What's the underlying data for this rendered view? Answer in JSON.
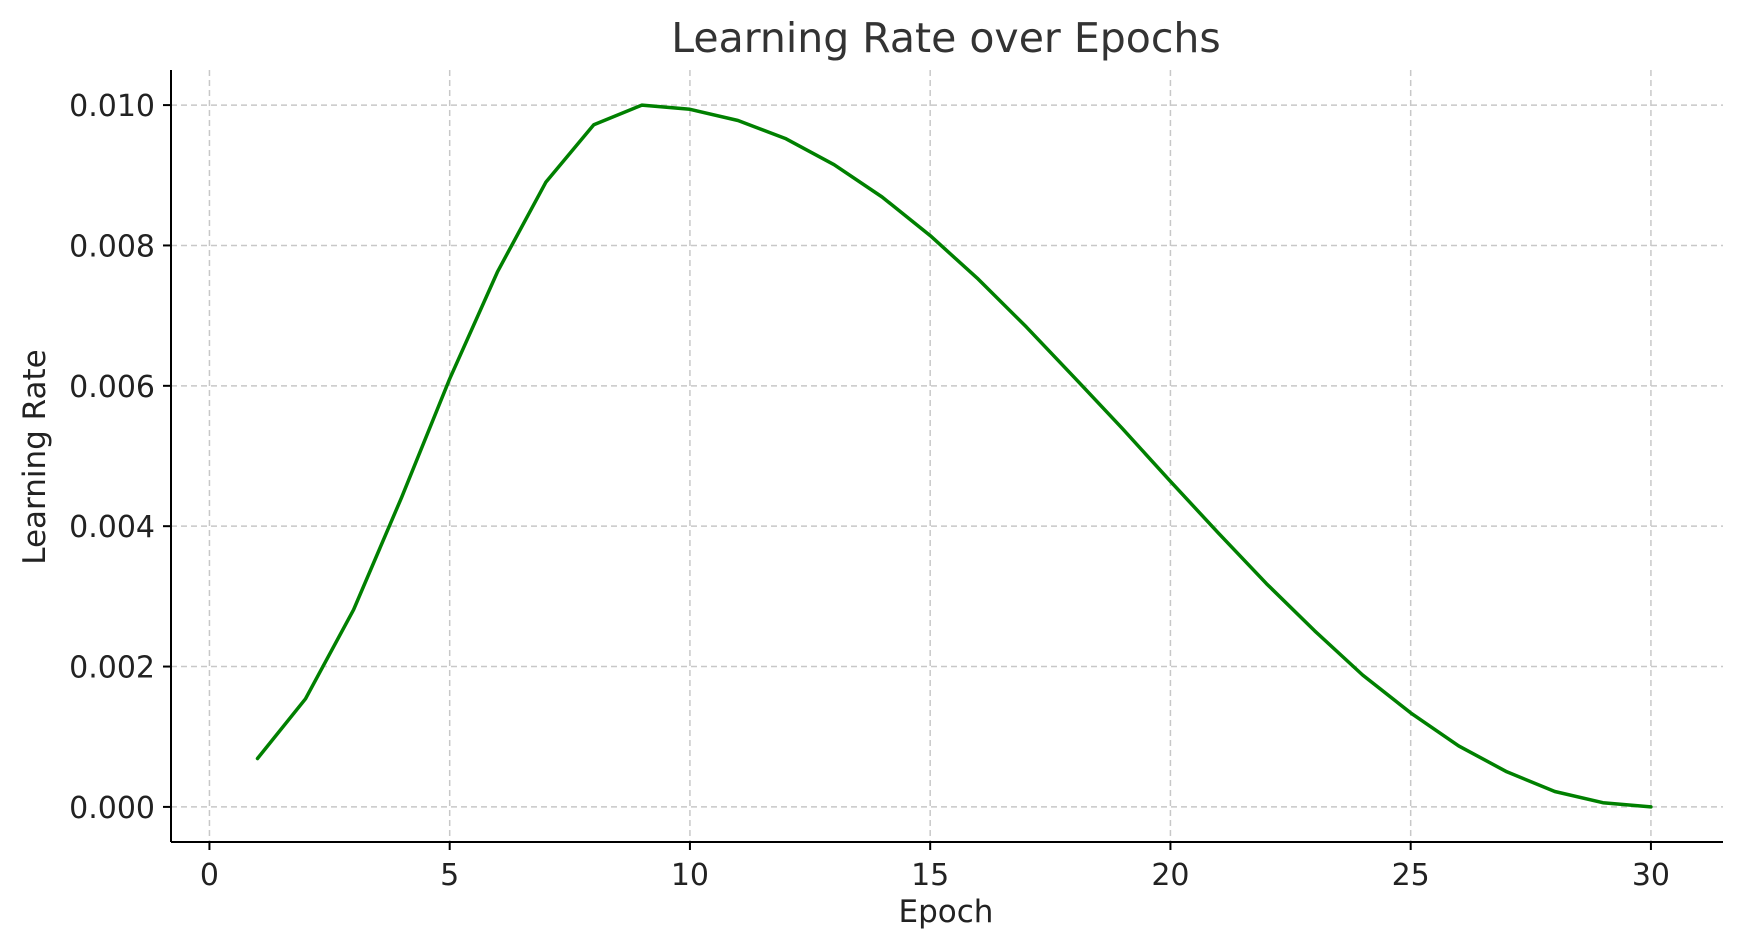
{
  "chart_data": {
    "type": "line",
    "title": "Learning Rate over Epochs",
    "xlabel": "Epoch",
    "ylabel": "Learning Rate",
    "xlim": [
      -0.8,
      31.5
    ],
    "ylim": [
      -0.0005,
      0.0105
    ],
    "xticks": [
      0,
      5,
      10,
      15,
      20,
      25,
      30
    ],
    "xtick_labels": [
      "0",
      "5",
      "10",
      "15",
      "20",
      "25",
      "30"
    ],
    "yticks": [
      0.0,
      0.002,
      0.004,
      0.006,
      0.008,
      0.01
    ],
    "ytick_labels": [
      "0.000",
      "0.002",
      "0.004",
      "0.006",
      "0.008",
      "0.010"
    ],
    "grid": true,
    "series": [
      {
        "color": "#008000",
        "x": [
          1,
          2,
          3,
          4,
          5,
          6,
          7,
          8,
          9,
          10,
          11,
          12,
          13,
          14,
          15,
          16,
          17,
          18,
          19,
          20,
          21,
          22,
          23,
          24,
          25,
          26,
          27,
          28,
          29,
          30
        ],
        "y": [
          0.00069,
          0.00154,
          0.00281,
          0.00441,
          0.0061,
          0.00763,
          0.0089,
          0.00972,
          0.01,
          0.00994,
          0.00978,
          0.00952,
          0.00915,
          0.00869,
          0.00814,
          0.00752,
          0.00684,
          0.00612,
          0.00539,
          0.00464,
          0.0039,
          0.00318,
          0.00251,
          0.00188,
          0.00134,
          0.00087,
          0.0005,
          0.00022,
          6e-05,
          0.0
        ]
      }
    ]
  }
}
